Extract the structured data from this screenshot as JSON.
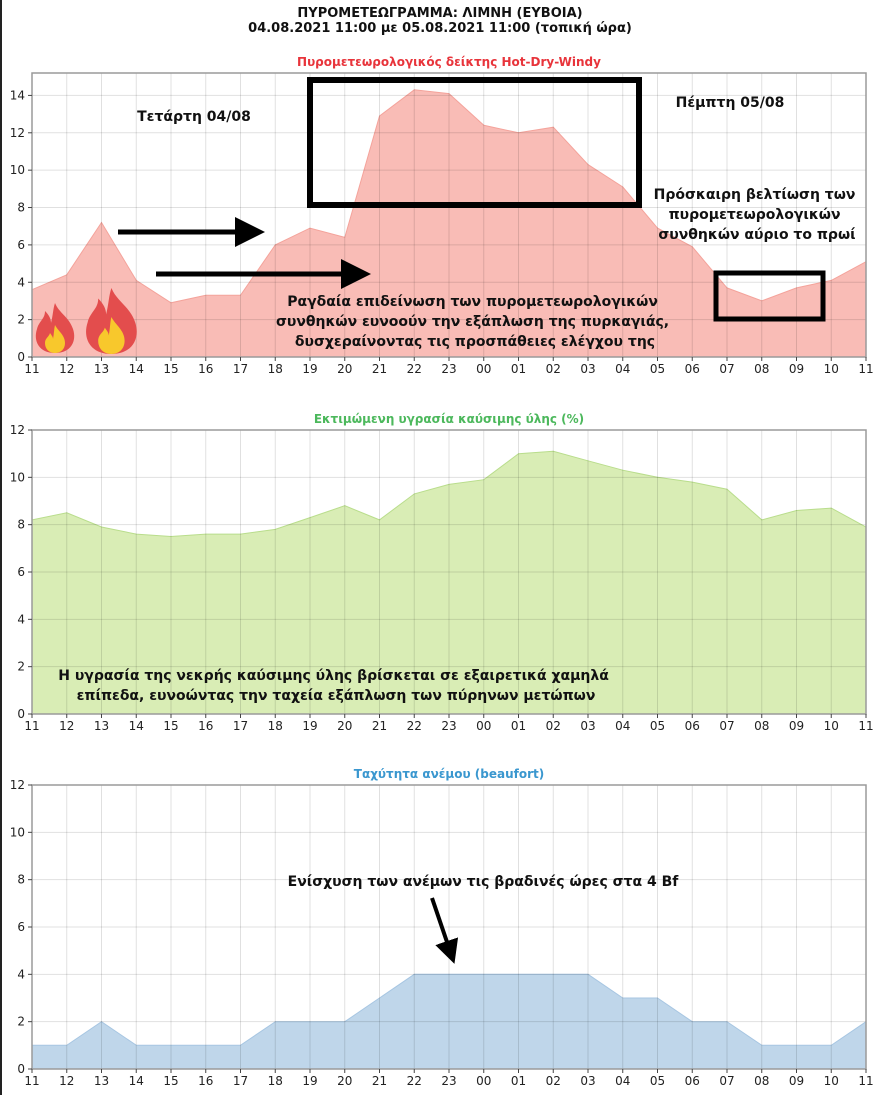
{
  "header": {
    "title_line1": "ΠΥΡΟΜΕΤΕΩΓΡΑΜΜΑ: ΛΙΜΝΗ (ΕΥΒΟΙΑ)",
    "title_line2": "04.08.2021 11:00 με 05.08.2021 11:00 (τοπική ώρα)"
  },
  "chart_data": [
    {
      "type": "area",
      "title": "Πυρομετεωρολογικός δείκτης Hot-Dry-Windy",
      "title_color": "#e8343b",
      "fill_color": "#f9bcb6",
      "line_color": "#f4a39b",
      "xlabel": "",
      "ylabel": "",
      "x": [
        "11",
        "12",
        "13",
        "14",
        "15",
        "16",
        "17",
        "18",
        "19",
        "20",
        "21",
        "22",
        "23",
        "00",
        "01",
        "02",
        "03",
        "04",
        "05",
        "06",
        "07",
        "08",
        "09",
        "10",
        "11"
      ],
      "values": [
        3.6,
        4.4,
        7.2,
        4.1,
        2.9,
        3.3,
        3.3,
        6.0,
        6.9,
        6.4,
        12.9,
        14.3,
        14.1,
        12.4,
        12.0,
        12.3,
        10.3,
        9.1,
        6.9,
        5.9,
        3.7,
        3.0,
        3.7,
        4.1,
        5.1
      ],
      "yticks": [
        0,
        2,
        4,
        6,
        8,
        10,
        12,
        14
      ],
      "ylim": [
        0,
        15.2
      ],
      "grid": true,
      "annotations": {
        "day1": "Τετάρτη  04/08",
        "day2": "Πέμπτη  05/08",
        "main_text": [
          "Ραγδαία επιδείνωση των πυρομετεωρολογικών",
          "συνθηκών ευνοούν την εξάπλωση της πυρκαγιάς,",
          "δυσχεραίνοντας τις προσπάθειες ελέγχου της"
        ],
        "improve_text": [
          "Πρόσκαιρη βελτίωση των",
          "πυρομετεωρολογικών",
          "συνθηκών αύριο το πρωί"
        ]
      }
    },
    {
      "type": "area",
      "title": "Εκτιμώμενη υγρασία καύσιμης ύλης (%)",
      "title_color": "#4cb85c",
      "fill_color": "#d9edb5",
      "line_color": "#b9dd8c",
      "xlabel": "",
      "ylabel": "",
      "x": [
        "11",
        "12",
        "13",
        "14",
        "15",
        "16",
        "17",
        "18",
        "19",
        "20",
        "21",
        "22",
        "23",
        "00",
        "01",
        "02",
        "03",
        "04",
        "05",
        "06",
        "07",
        "08",
        "09",
        "10",
        "11"
      ],
      "values": [
        8.2,
        8.5,
        7.9,
        7.6,
        7.5,
        7.6,
        7.6,
        7.8,
        8.3,
        8.8,
        8.2,
        9.3,
        9.7,
        9.9,
        11.0,
        11.1,
        10.7,
        10.3,
        10.0,
        9.8,
        9.5,
        8.2,
        8.6,
        8.7,
        7.9
      ],
      "yticks": [
        0,
        2,
        4,
        6,
        8,
        10,
        12
      ],
      "ylim": [
        0,
        12
      ],
      "grid": true,
      "annotations": {
        "main_text": [
          "Η υγρασία της νεκρής καύσιμης ύλης βρίσκεται σε εξαιρετικά χαμηλά",
          "επίπεδα, ευνοώντας την ταχεία εξάπλωση των πύρηνων μετώπων"
        ]
      }
    },
    {
      "type": "area",
      "title": "Ταχύτητα ανέμου (beaufort)",
      "title_color": "#3a97cf",
      "fill_color": "#bfd6ea",
      "line_color": "#a7c6e2",
      "xlabel": "",
      "ylabel": "",
      "x": [
        "11",
        "12",
        "13",
        "14",
        "15",
        "16",
        "17",
        "18",
        "19",
        "20",
        "21",
        "22",
        "23",
        "00",
        "01",
        "02",
        "03",
        "04",
        "05",
        "06",
        "07",
        "08",
        "09",
        "10",
        "11"
      ],
      "values": [
        1,
        1,
        2,
        1,
        1,
        1,
        1,
        2,
        2,
        2,
        3,
        4,
        4,
        4,
        4,
        4,
        4,
        3,
        3,
        2,
        2,
        1,
        1,
        1,
        2
      ],
      "yticks": [
        0,
        2,
        4,
        6,
        8,
        10,
        12
      ],
      "ylim": [
        0,
        12
      ],
      "grid": true,
      "annotations": {
        "main_text": [
          "Ενίσχυση των ανέμων τις βραδινές ώρες στα 4 Bf"
        ]
      }
    }
  ],
  "icons": {
    "flame_small": "fire-icon",
    "flame_large": "fire-icon"
  }
}
